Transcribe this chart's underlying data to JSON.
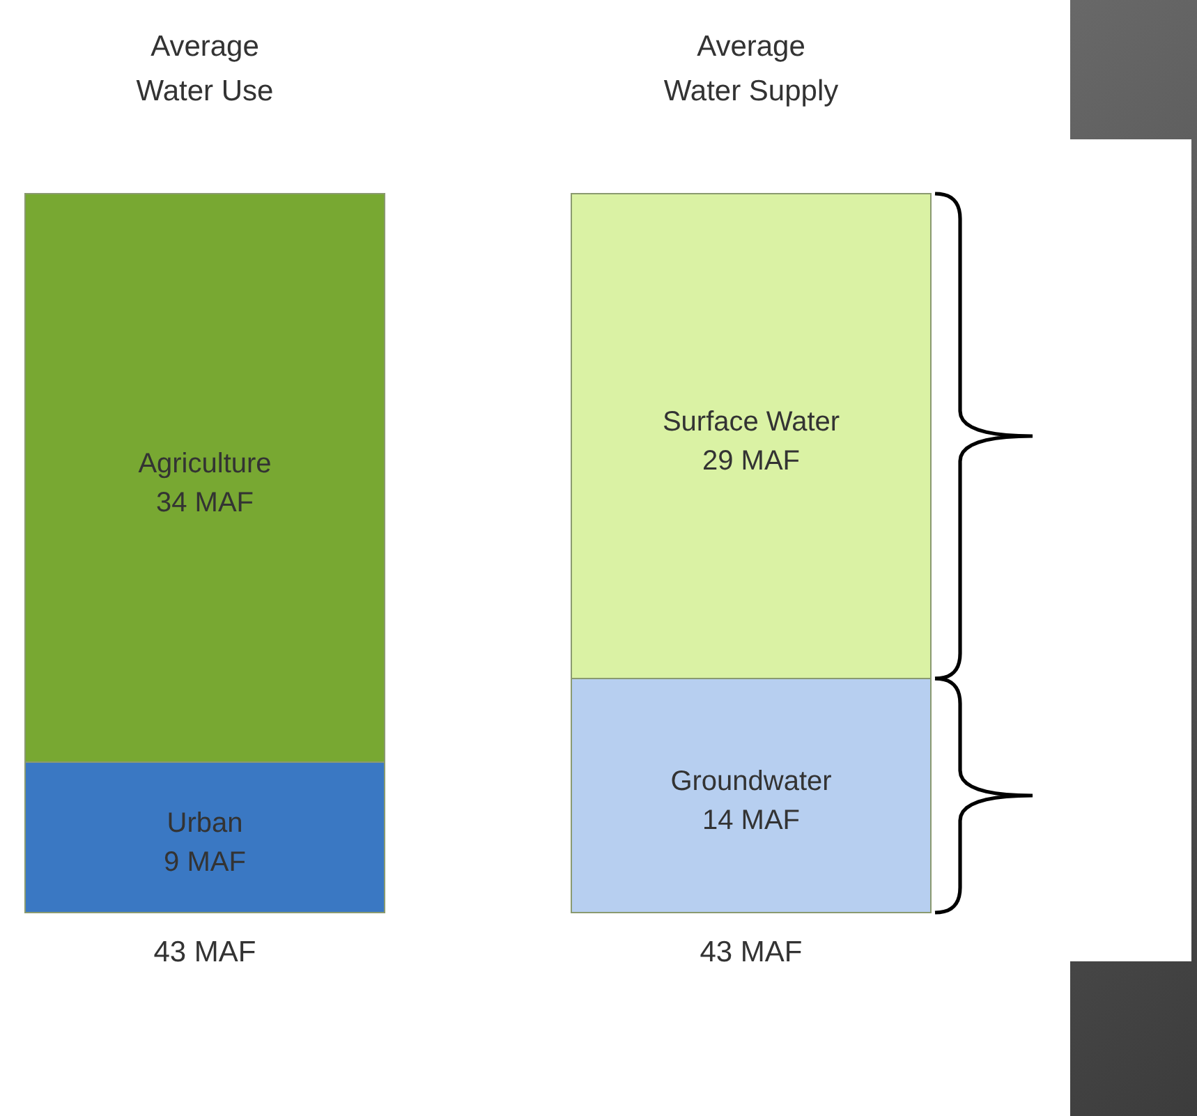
{
  "chart_data": {
    "type": "bar",
    "stacked": true,
    "categories": [
      "Average Water Use",
      "Average Water Supply"
    ],
    "series": [
      {
        "name": "Urban",
        "color": "#3a78c3",
        "values": [
          9,
          null
        ],
        "value_labels": [
          "9 MAF",
          null
        ]
      },
      {
        "name": "Agriculture",
        "color": "#78a832",
        "values": [
          34,
          null
        ],
        "value_labels": [
          "34 MAF",
          null
        ]
      },
      {
        "name": "Groundwater",
        "color": "#b7cff0",
        "values": [
          null,
          14
        ],
        "value_labels": [
          null,
          "14 MAF"
        ]
      },
      {
        "name": "Surface Water",
        "color": "#daf2a4",
        "values": [
          null,
          29
        ],
        "value_labels": [
          null,
          "29 MAF"
        ]
      }
    ],
    "totals": [
      "43 MAF",
      "43 MAF"
    ]
  }
}
